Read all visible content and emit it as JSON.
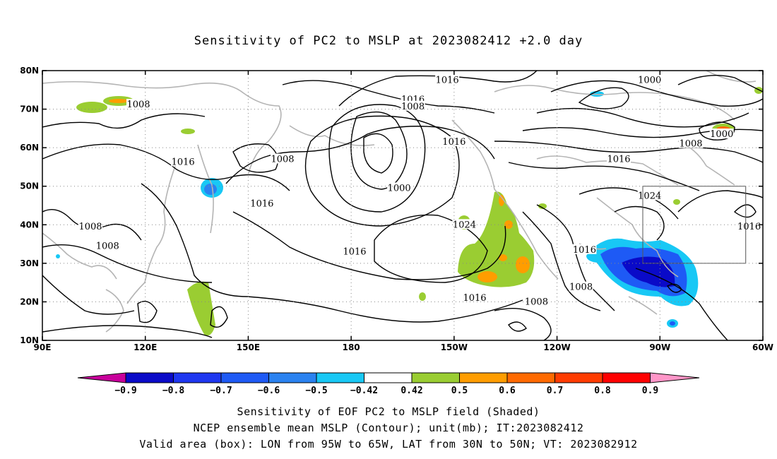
{
  "title": "Sensitivity of PC2 to MSLP at 2023082412 +2.0 day",
  "axes": {
    "lat_labels": [
      "80N",
      "70N",
      "60N",
      "50N",
      "40N",
      "30N",
      "20N",
      "10N"
    ],
    "lon_labels": [
      "90E",
      "120E",
      "150E",
      "180",
      "150W",
      "120W",
      "90W",
      "60W"
    ],
    "lon_range": [
      90,
      300
    ],
    "lat_range": [
      10,
      80
    ]
  },
  "contour_labels": [
    {
      "text": "1016",
      "lon": 208,
      "lat": 77.5
    },
    {
      "text": "1000",
      "lon": 267,
      "lat": 77.5
    },
    {
      "text": "1016",
      "lon": 198,
      "lat": 72.5
    },
    {
      "text": "1008",
      "lon": 198,
      "lat": 70.7
    },
    {
      "text": "1008",
      "lon": 118,
      "lat": 71.2
    },
    {
      "text": "1016",
      "lon": 210,
      "lat": 61.5
    },
    {
      "text": "1000",
      "lon": 288,
      "lat": 63.5
    },
    {
      "text": "1008",
      "lon": 279,
      "lat": 61
    },
    {
      "text": "1016",
      "lon": 258,
      "lat": 57
    },
    {
      "text": "1016",
      "lon": 131,
      "lat": 56.3
    },
    {
      "text": "1008",
      "lon": 160,
      "lat": 57
    },
    {
      "text": "1000",
      "lon": 194,
      "lat": 49.5
    },
    {
      "text": "1024",
      "lon": 267,
      "lat": 47.5
    },
    {
      "text": "1016",
      "lon": 154,
      "lat": 45.5
    },
    {
      "text": "1024",
      "lon": 213,
      "lat": 40
    },
    {
      "text": "1016",
      "lon": 296,
      "lat": 39.5
    },
    {
      "text": "1008",
      "lon": 104,
      "lat": 39.5
    },
    {
      "text": "1008",
      "lon": 109,
      "lat": 34.5
    },
    {
      "text": "1016",
      "lon": 181,
      "lat": 33
    },
    {
      "text": "1016",
      "lon": 248,
      "lat": 33.5
    },
    {
      "text": "1008",
      "lon": 247,
      "lat": 23.8
    },
    {
      "text": "1016",
      "lon": 216,
      "lat": 21
    },
    {
      "text": "1008",
      "lon": 234,
      "lat": 20
    }
  ],
  "valid_box": {
    "lon": [
      265,
      295
    ],
    "lat": [
      30,
      50
    ]
  },
  "colorbar": {
    "labels": [
      "−0.9",
      "−0.8",
      "−0.7",
      "−0.6",
      "−0.5",
      "−0.42",
      "0.42",
      "0.5",
      "0.6",
      "0.7",
      "0.8",
      "0.9"
    ],
    "colors": [
      "#0a0ac8",
      "#1e37f0",
      "#1e5af5",
      "#2a82f0",
      "#18c8f5",
      "#ffffff",
      "#9acd32",
      "#ff9d00",
      "#ff6a00",
      "#ff3c00",
      "#ff0000"
    ],
    "low_extend_color": "#c8009b",
    "high_extend_color": "#ff96c8"
  },
  "footer": [
    "Sensitivity of EOF PC2 to MSLP field (Shaded)",
    "NCEP ensemble mean MSLP (Contour); unit(mb); IT:2023082412",
    "Valid area (box): LON from 95W to 65W, LAT from 30N to 50N; VT: 2023082912"
  ]
}
